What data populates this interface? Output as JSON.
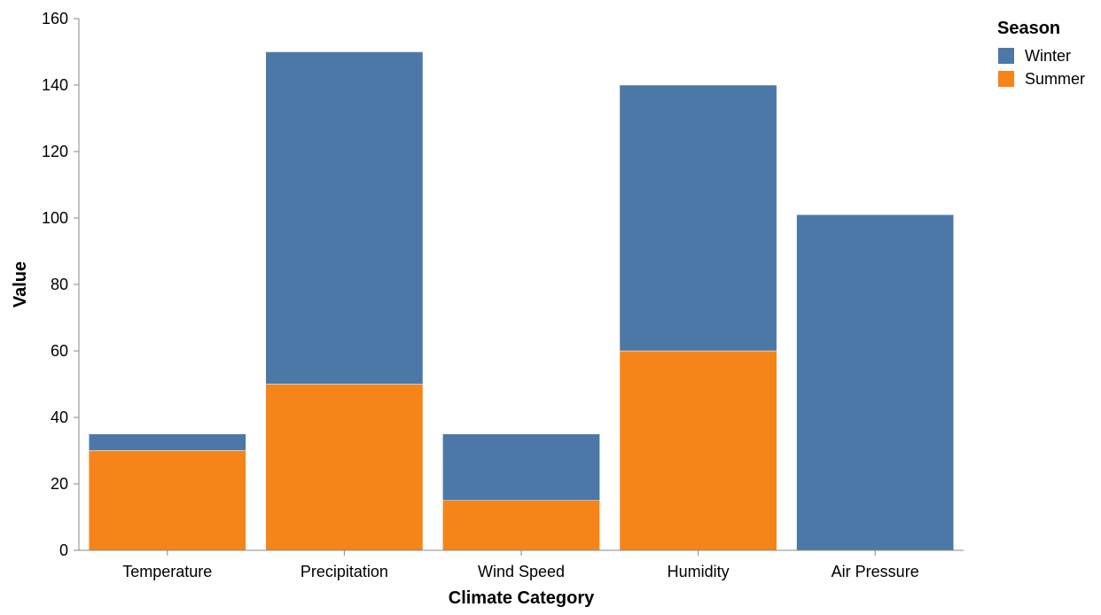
{
  "chart_data": {
    "type": "bar",
    "stacked": true,
    "categories": [
      "Temperature",
      "Precipitation",
      "Wind Speed",
      "Humidity",
      "Air Pressure"
    ],
    "series": [
      {
        "name": "Summer",
        "values": [
          30,
          50,
          15,
          60,
          0
        ],
        "color": "#f58518"
      },
      {
        "name": "Winter",
        "values": [
          5,
          100,
          20,
          80,
          101
        ],
        "color": "#4c78a8"
      }
    ],
    "xlabel": "Climate Category",
    "ylabel": "Value",
    "ylim": [
      0,
      160
    ],
    "yticks": [
      0,
      20,
      40,
      60,
      80,
      100,
      120,
      140,
      160
    ],
    "grid": false,
    "legend": {
      "title": "Season",
      "placement": "top-right",
      "entries": [
        {
          "label": "Winter",
          "color": "#4c78a8"
        },
        {
          "label": "Summer",
          "color": "#f58518"
        }
      ]
    }
  }
}
